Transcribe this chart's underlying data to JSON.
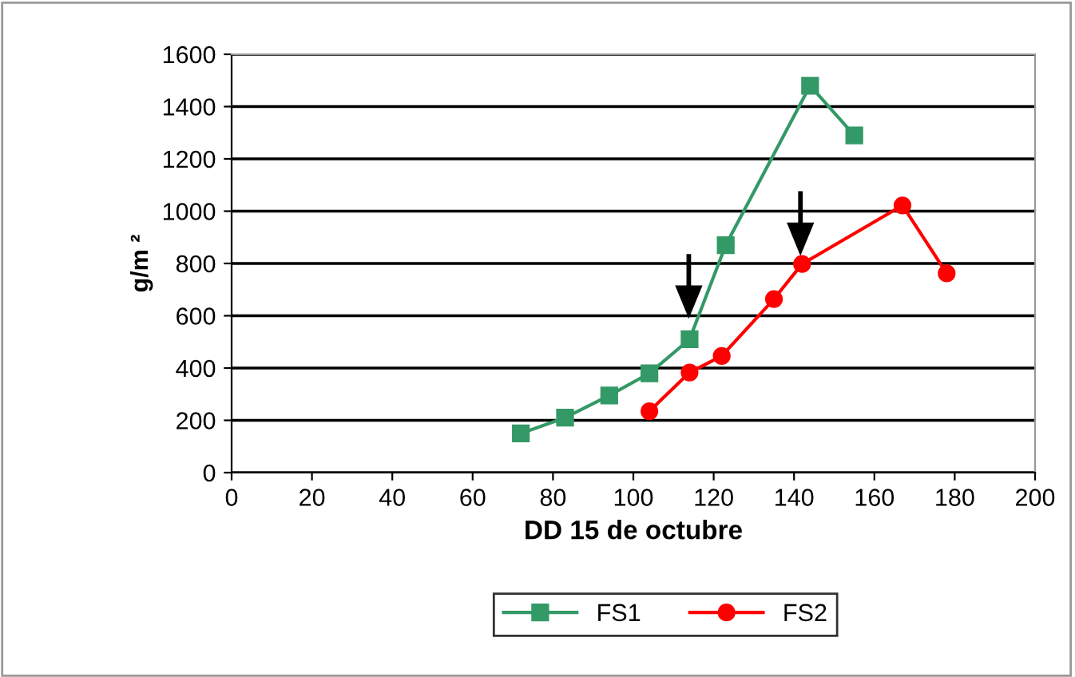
{
  "chart_data": {
    "type": "line",
    "xlabel": "DD 15 de octubre",
    "ylabel": "g/m ²",
    "xlim": [
      0,
      200
    ],
    "xticks": [
      0,
      20,
      40,
      60,
      80,
      100,
      120,
      140,
      160,
      180,
      200
    ],
    "ylim": [
      0,
      1600
    ],
    "yticks": [
      0,
      200,
      400,
      600,
      800,
      1000,
      1200,
      1400,
      1600
    ],
    "grid": "y",
    "legend": "bottom",
    "series": [
      {
        "name": "FS1",
        "color": "#339966",
        "marker": "square",
        "x": [
          72,
          83,
          94,
          104,
          114,
          123,
          144,
          155
        ],
        "values": [
          150,
          210,
          295,
          380,
          510,
          870,
          1480,
          1290
        ]
      },
      {
        "name": "FS2",
        "color": "#ff0000",
        "marker": "circle",
        "x": [
          104,
          114,
          122,
          135,
          142,
          167,
          178
        ],
        "values": [
          235,
          383,
          446,
          664,
          798,
          1022,
          762
        ]
      }
    ]
  }
}
